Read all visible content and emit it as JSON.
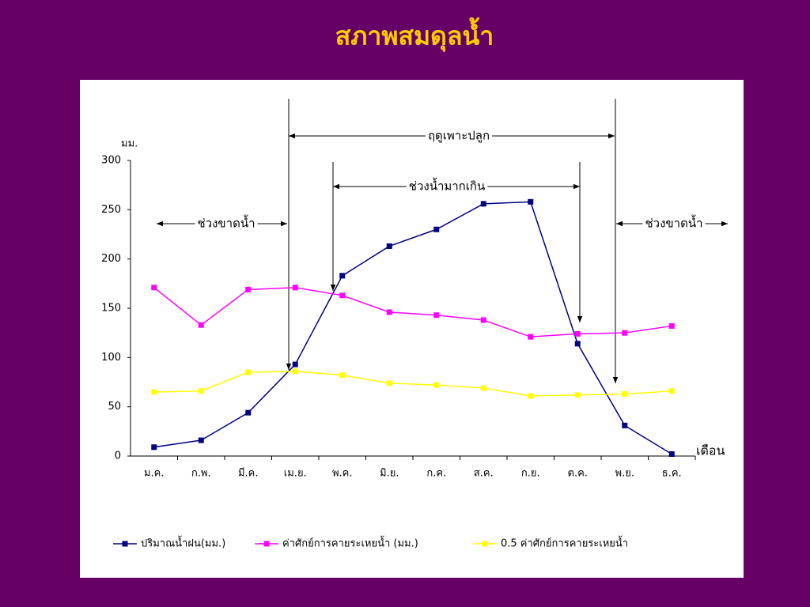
{
  "chart_data": {
    "type": "line",
    "title": "สภาพสมดุลน้ำ",
    "y_label": "มม.",
    "x_label": "เดือน",
    "categories": [
      "ม.ค.",
      "ก.พ.",
      "มี.ค.",
      "เม.ย.",
      "พ.ค.",
      "มิ.ย.",
      "ก.ค.",
      "ส.ค.",
      "ก.ย.",
      "ต.ค.",
      "พ.ย.",
      "ธ.ค."
    ],
    "series": [
      {
        "name": "ปริมาณน้ำฝน(มม.)",
        "color": "#000080",
        "values": [
          9,
          16,
          44,
          93,
          183,
          213,
          230,
          256,
          258,
          114,
          31,
          2
        ]
      },
      {
        "name": "ค่าศักย์การคายระเหยน้ำ (มม.)",
        "color": "#ff00ff",
        "values": [
          171,
          133,
          169,
          171,
          163,
          146,
          143,
          138,
          121,
          124,
          125,
          132
        ]
      },
      {
        "name": "0.5 ค่าศักย์การคายระเหยน้ำ",
        "color": "#ffff00",
        "values": [
          65,
          66,
          85,
          86,
          82,
          74,
          72,
          69,
          61,
          62,
          63,
          66
        ]
      }
    ],
    "ylim": [
      0,
      300
    ],
    "yticks": [
      0,
      50,
      100,
      150,
      200,
      250,
      300
    ],
    "annotations": [
      "ฤดูเพาะปลูก",
      "ช่วงน้ำมากเกิน",
      "ช่วงขาดน้ำ",
      "ช่วงขาดน้ำ"
    ]
  }
}
